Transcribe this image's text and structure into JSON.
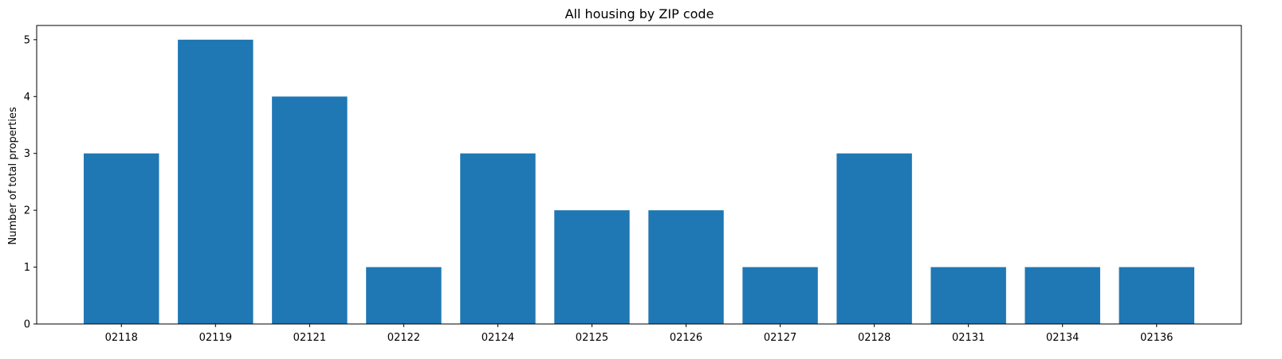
{
  "chart_data": {
    "type": "bar",
    "title": "All housing by ZIP code",
    "xlabel": "",
    "ylabel": "Number of total properties",
    "categories": [
      "02118",
      "02119",
      "02121",
      "02122",
      "02124",
      "02125",
      "02126",
      "02127",
      "02128",
      "02131",
      "02134",
      "02136"
    ],
    "values": [
      3,
      5,
      4,
      1,
      3,
      2,
      2,
      1,
      3,
      1,
      1,
      1
    ],
    "ylim": [
      0,
      5.25
    ],
    "yticks": [
      0,
      1,
      2,
      3,
      4,
      5
    ],
    "grid": false,
    "bar_color": "#1f77b4"
  }
}
